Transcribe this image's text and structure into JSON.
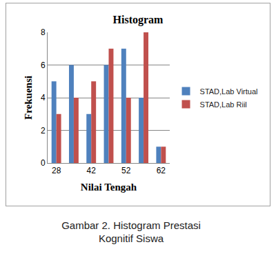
{
  "chart_data": {
    "type": "bar",
    "title": "Histogram",
    "x_label": "Nilai Tengah",
    "y_label": "Frekuensi",
    "categories": [
      "28",
      null,
      "42",
      null,
      "52",
      null,
      "62"
    ],
    "series": [
      {
        "name": "STAD,Lab Virtual",
        "color": "#4f81bd",
        "values": [
          5,
          6,
          3,
          6,
          7,
          4,
          1
        ]
      },
      {
        "name": "STAD,Lab Riil",
        "color": "#c0504d",
        "values": [
          3,
          4,
          5,
          7,
          4,
          8,
          1
        ]
      }
    ],
    "ylim": [
      0,
      8
    ],
    "yticks": [
      0,
      2,
      4,
      6,
      8
    ],
    "grid": true,
    "legend": "right"
  },
  "caption": "Gambar  2. Histogram Prestasi Kognitif Siswa"
}
